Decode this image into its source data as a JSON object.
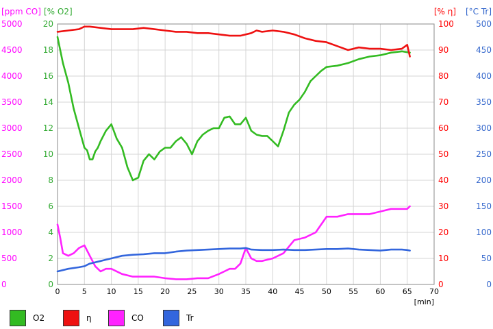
{
  "chart_data": {
    "type": "line",
    "x_unit": "[min]",
    "xlim": [
      0,
      70
    ],
    "x_ticks": [
      "0",
      "5",
      "10",
      "15",
      "20",
      "25",
      "30",
      "35",
      "40",
      "45",
      "50",
      "55",
      "60",
      "65",
      "70"
    ],
    "axes": {
      "co": {
        "title": "[ppm CO]",
        "color": "#ff00ff",
        "ylim": [
          0,
          5000
        ],
        "ticks": [
          "0",
          "500",
          "1000",
          "1500",
          "2000",
          "2500",
          "3000",
          "3500",
          "4000",
          "4500",
          "5000"
        ]
      },
      "o2": {
        "title": "[% O2]",
        "color": "#33aa33",
        "ylim": [
          0,
          20
        ],
        "ticks": [
          "0",
          "2",
          "4",
          "6",
          "8",
          "10",
          "12",
          "14",
          "16",
          "18",
          "20"
        ]
      },
      "eta": {
        "title": "[% η]",
        "color": "#ff0000",
        "ylim": [
          0,
          100
        ],
        "ticks": [
          "0",
          "10",
          "20",
          "30",
          "40",
          "50",
          "60",
          "70",
          "80",
          "90",
          "100"
        ]
      },
      "tr": {
        "title": "[°C Tr]",
        "color": "#3366cc",
        "ylim": [
          0,
          500
        ],
        "ticks": [
          "0",
          "50",
          "100",
          "150",
          "200",
          "250",
          "300",
          "350",
          "400",
          "450",
          "500"
        ]
      }
    },
    "series": [
      {
        "name": "O2",
        "axis": "o2",
        "color": "#33bb22",
        "x": [
          0,
          1,
          2,
          3,
          4,
          5,
          5.5,
          6,
          6.5,
          7,
          7.5,
          8,
          9,
          10,
          11,
          12,
          13,
          14,
          15,
          16,
          17,
          18,
          19,
          20,
          21,
          22,
          23,
          24,
          25,
          26,
          27,
          28,
          29,
          30,
          31,
          32,
          33,
          34,
          35,
          36,
          37,
          38,
          39,
          40,
          41,
          42,
          43,
          44,
          45,
          46,
          47,
          48,
          49,
          50,
          52,
          54,
          56,
          58,
          60,
          62,
          64,
          65.5
        ],
        "y": [
          19,
          17,
          15.5,
          13.5,
          12,
          10.5,
          10.3,
          9.6,
          9.6,
          10.2,
          10.5,
          11,
          11.8,
          12.3,
          11.2,
          10.5,
          9,
          8,
          8.2,
          9.5,
          10,
          9.6,
          10.2,
          10.5,
          10.5,
          11,
          11.3,
          10.8,
          10,
          11,
          11.5,
          11.8,
          12,
          12,
          12.8,
          12.9,
          12.3,
          12.3,
          12.8,
          11.8,
          11.5,
          11.4,
          11.4,
          11,
          10.6,
          11.8,
          13.2,
          13.8,
          14.2,
          14.8,
          15.6,
          16,
          16.4,
          16.7,
          16.8,
          17,
          17.3,
          17.5,
          17.6,
          17.8,
          17.9,
          17.8
        ]
      },
      {
        "name": "η",
        "axis": "eta",
        "color": "#ee1111",
        "x": [
          0,
          2,
          4,
          5,
          6,
          8,
          10,
          12,
          14,
          16,
          18,
          20,
          22,
          24,
          26,
          28,
          30,
          32,
          34,
          36,
          37,
          38,
          40,
          42,
          44,
          46,
          48,
          50,
          52,
          54,
          56,
          58,
          60,
          62,
          64,
          65,
          65.5
        ],
        "y": [
          97,
          97.5,
          98,
          99,
          99,
          98.5,
          98,
          98,
          98,
          98.5,
          98,
          97.5,
          97,
          97,
          96.5,
          96.5,
          96,
          95.5,
          95.5,
          96.5,
          97.5,
          97,
          97.5,
          97,
          96,
          94.5,
          93.5,
          93,
          91.5,
          90,
          91,
          90.5,
          90.5,
          90,
          90.5,
          92,
          87.5
        ]
      },
      {
        "name": "CO",
        "axis": "co",
        "color": "#ff22ff",
        "x": [
          0,
          0.5,
          1,
          2,
          3,
          4,
          5,
          6,
          7,
          8,
          9,
          10,
          12,
          14,
          16,
          18,
          20,
          22,
          24,
          26,
          28,
          30,
          31,
          32,
          33,
          34,
          35,
          36,
          37,
          38,
          40,
          42,
          44,
          46,
          48,
          50,
          52,
          54,
          56,
          58,
          60,
          62,
          64,
          65,
          65.5
        ],
        "y": [
          1150,
          900,
          600,
          550,
          600,
          700,
          750,
          550,
          350,
          250,
          300,
          300,
          200,
          150,
          150,
          150,
          120,
          100,
          100,
          120,
          120,
          200,
          250,
          300,
          300,
          400,
          700,
          500,
          450,
          450,
          500,
          600,
          850,
          900,
          1000,
          1300,
          1300,
          1350,
          1350,
          1350,
          1400,
          1450,
          1450,
          1450,
          1500
        ]
      },
      {
        "name": "Tr",
        "axis": "tr",
        "color": "#3366dd",
        "x": [
          0,
          2,
          4,
          5,
          6,
          8,
          10,
          12,
          14,
          16,
          18,
          20,
          22,
          24,
          26,
          28,
          30,
          32,
          34,
          35,
          36,
          38,
          40,
          42,
          44,
          46,
          48,
          50,
          52,
          54,
          56,
          58,
          60,
          62,
          64,
          65,
          65.5
        ],
        "y": [
          25,
          30,
          33,
          35,
          40,
          45,
          50,
          55,
          57,
          58,
          60,
          60,
          63,
          65,
          66,
          67,
          68,
          69,
          69,
          70,
          67,
          66,
          66,
          67,
          66,
          66,
          67,
          68,
          68,
          69,
          67,
          66,
          65,
          67,
          67,
          66,
          65
        ]
      }
    ],
    "legend": {
      "placement": "bottom",
      "items": [
        {
          "label": "O2",
          "color": "#33bb22"
        },
        {
          "label": "η",
          "color": "#ee1111"
        },
        {
          "label": "CO",
          "color": "#ff22ff"
        },
        {
          "label": "Tr",
          "color": "#3366dd"
        }
      ]
    },
    "grid": true
  }
}
